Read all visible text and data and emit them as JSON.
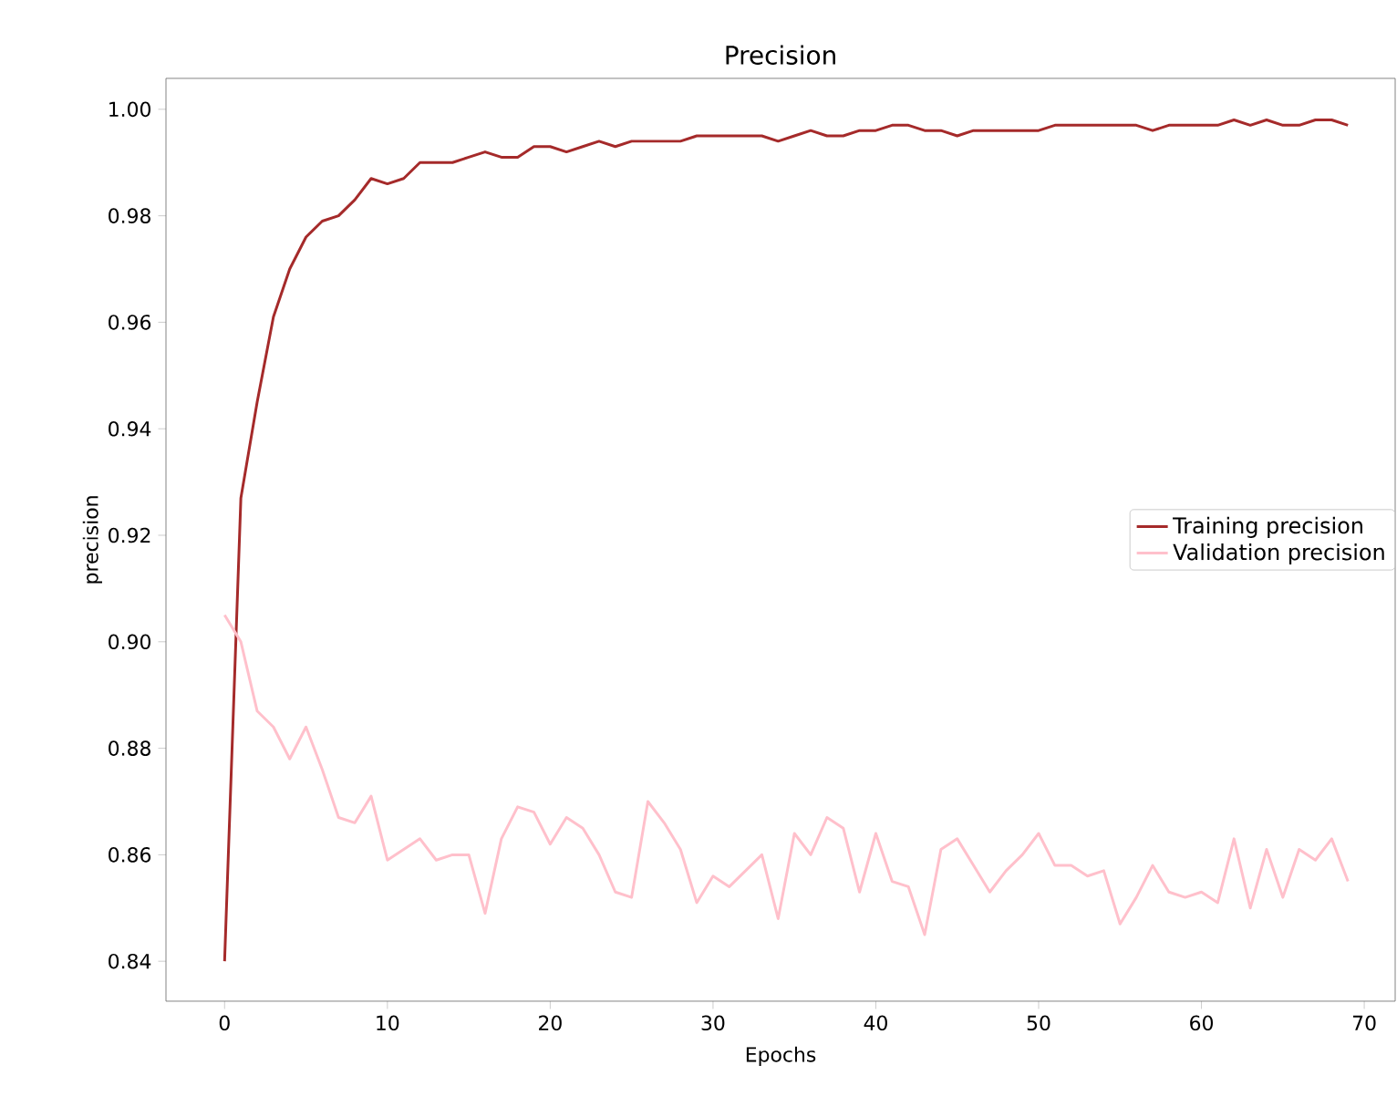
{
  "chart_data": {
    "type": "line",
    "title": "Precision",
    "xlabel": "Epochs",
    "ylabel": "precision",
    "x": [
      0,
      1,
      2,
      3,
      4,
      5,
      6,
      7,
      8,
      9,
      10,
      11,
      12,
      13,
      14,
      15,
      16,
      17,
      18,
      19,
      20,
      21,
      22,
      23,
      24,
      25,
      26,
      27,
      28,
      29,
      30,
      31,
      32,
      33,
      34,
      35,
      36,
      37,
      38,
      39,
      40,
      41,
      42,
      43,
      44,
      45,
      46,
      47,
      48,
      49,
      50,
      51,
      52,
      53,
      54,
      55,
      56,
      57,
      58,
      59,
      60,
      61,
      62,
      63,
      64,
      65,
      66,
      67,
      68,
      69
    ],
    "series": [
      {
        "name": "Training precision",
        "color": "#a52a2a",
        "values": [
          0.84,
          0.927,
          0.945,
          0.961,
          0.97,
          0.976,
          0.979,
          0.98,
          0.983,
          0.987,
          0.986,
          0.987,
          0.99,
          0.99,
          0.99,
          0.991,
          0.992,
          0.991,
          0.991,
          0.993,
          0.993,
          0.992,
          0.993,
          0.994,
          0.993,
          0.994,
          0.994,
          0.994,
          0.994,
          0.995,
          0.995,
          0.995,
          0.995,
          0.995,
          0.994,
          0.995,
          0.996,
          0.995,
          0.995,
          0.996,
          0.996,
          0.997,
          0.997,
          0.996,
          0.996,
          0.995,
          0.996,
          0.996,
          0.996,
          0.996,
          0.996,
          0.997,
          0.997,
          0.997,
          0.997,
          0.997,
          0.997,
          0.996,
          0.997,
          0.997,
          0.997,
          0.997,
          0.998,
          0.997,
          0.998,
          0.997,
          0.997,
          0.998,
          0.998,
          0.997
        ]
      },
      {
        "name": "Validation precision",
        "color": "#ffc0cb",
        "values": [
          0.905,
          0.9,
          0.887,
          0.884,
          0.878,
          0.884,
          0.876,
          0.867,
          0.866,
          0.871,
          0.859,
          0.861,
          0.863,
          0.859,
          0.86,
          0.86,
          0.849,
          0.863,
          0.869,
          0.868,
          0.862,
          0.867,
          0.865,
          0.86,
          0.853,
          0.852,
          0.87,
          0.866,
          0.861,
          0.851,
          0.856,
          0.854,
          0.857,
          0.86,
          0.848,
          0.864,
          0.86,
          0.867,
          0.865,
          0.853,
          0.864,
          0.855,
          0.854,
          0.845,
          0.861,
          0.863,
          0.858,
          0.853,
          0.857,
          0.86,
          0.864,
          0.858,
          0.858,
          0.856,
          0.857,
          0.847,
          0.852,
          0.858,
          0.853,
          0.852,
          0.853,
          0.851,
          0.863,
          0.85,
          0.861,
          0.852,
          0.861,
          0.859,
          0.863,
          0.855
        ]
      }
    ],
    "xlim": [
      -3.6,
      71.9
    ],
    "ylim": [
      0.8325,
      1.0058
    ],
    "xticks": [
      0,
      10,
      20,
      30,
      40,
      50,
      60,
      70
    ],
    "yticks": [
      {
        "value": 0.84,
        "label": "0.84"
      },
      {
        "value": 0.86,
        "label": "0.86"
      },
      {
        "value": 0.88,
        "label": "0.88"
      },
      {
        "value": 0.9,
        "label": "0.90"
      },
      {
        "value": 0.92,
        "label": "0.92"
      },
      {
        "value": 0.94,
        "label": "0.94"
      },
      {
        "value": 0.96,
        "label": "0.96"
      },
      {
        "value": 0.98,
        "label": "0.98"
      },
      {
        "value": 1.0,
        "label": "1.00"
      }
    ],
    "legend": "center right",
    "grid": false,
    "marker": "none",
    "line_style": "solid"
  }
}
